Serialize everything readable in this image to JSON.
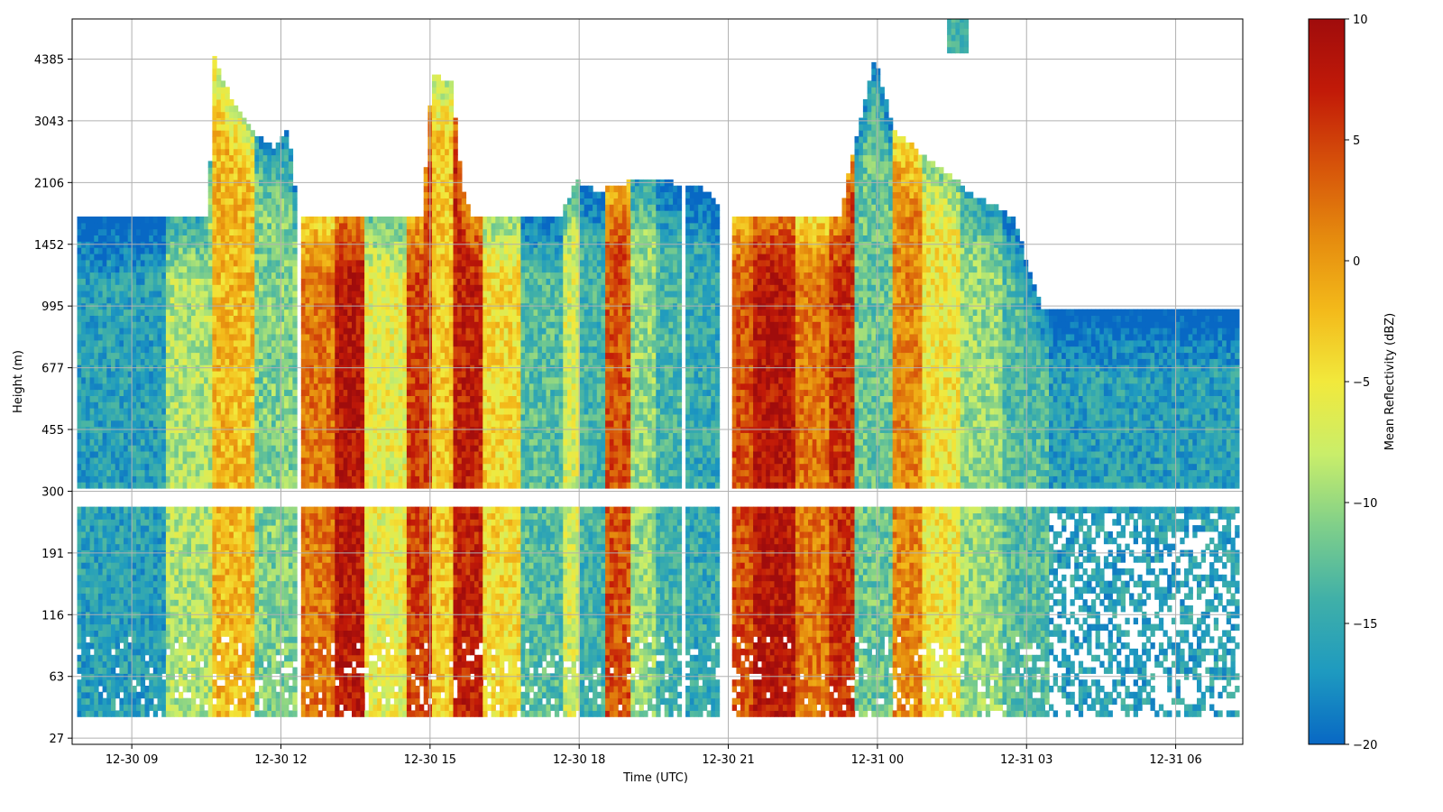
{
  "chart_data": {
    "type": "heatmap",
    "title": "",
    "xlabel": "Time (UTC)",
    "ylabel": "Height (m)",
    "x_ticks": [
      "12-30 09",
      "12-30 12",
      "12-30 15",
      "12-30 18",
      "12-30 21",
      "12-31 00",
      "12-31 03",
      "12-31 06"
    ],
    "x_tick_hours": [
      0,
      3,
      6,
      9,
      12,
      15,
      18,
      21
    ],
    "x_range_hours": [
      -1.2,
      22.35
    ],
    "y_ticks": [
      "27",
      "63",
      "116",
      "191",
      "300",
      "455",
      "677",
      "995",
      "1452",
      "2106",
      "3043",
      "4385"
    ],
    "grid": true,
    "colorbar": {
      "label": "Mean Reflectivity (dBZ)",
      "range": [
        -20,
        10
      ],
      "ticks": [
        "10",
        "5",
        "0",
        "−5",
        "−10",
        "−15",
        "−20"
      ],
      "tick_values": [
        10,
        5,
        0,
        -5,
        -10,
        -15,
        -20
      ],
      "colormap": [
        "#0868c4",
        "#1e9ac0",
        "#40b0a8",
        "#7fcf8a",
        "#c9ee6a",
        "#f2e93c",
        "#f3b91a",
        "#e58a0e",
        "#d6520a",
        "#c21a08",
        "#a00c0c"
      ]
    },
    "cloud_top_levels": [
      {
        "time": -1.1,
        "top": 8.4
      },
      {
        "time": 1.5,
        "top": 8.4
      },
      {
        "time": 1.6,
        "top": 11.0
      },
      {
        "time": 2.0,
        "top": 10.2
      },
      {
        "time": 2.5,
        "top": 9.7
      },
      {
        "time": 2.8,
        "top": 9.5
      },
      {
        "time": 3.1,
        "top": 9.8
      },
      {
        "time": 3.3,
        "top": 8.4
      },
      {
        "time": 5.8,
        "top": 8.4
      },
      {
        "time": 6.0,
        "top": 10.7
      },
      {
        "time": 6.4,
        "top": 10.6
      },
      {
        "time": 6.6,
        "top": 8.9
      },
      {
        "time": 6.8,
        "top": 8.4
      },
      {
        "time": 8.6,
        "top": 8.4
      },
      {
        "time": 8.9,
        "top": 9.0
      },
      {
        "time": 9.3,
        "top": 8.8
      },
      {
        "time": 9.7,
        "top": 8.9
      },
      {
        "time": 10.2,
        "top": 9.0
      },
      {
        "time": 11.4,
        "top": 8.9
      },
      {
        "time": 12.0,
        "top": 8.4
      },
      {
        "time": 14.2,
        "top": 8.4
      },
      {
        "time": 14.5,
        "top": 9.6
      },
      {
        "time": 14.9,
        "top": 11.0
      },
      {
        "time": 15.3,
        "top": 9.8
      },
      {
        "time": 16.0,
        "top": 9.3
      },
      {
        "time": 17.0,
        "top": 8.7
      },
      {
        "time": 17.7,
        "top": 8.4
      },
      {
        "time": 18.1,
        "top": 7.3
      },
      {
        "time": 18.3,
        "top": 6.9
      },
      {
        "time": 22.2,
        "top": 6.9
      }
    ],
    "high_cloud_patch": {
      "time_range": [
        16.4,
        16.8
      ],
      "top": 11.7,
      "bottom": 11.1
    },
    "bands": [
      {
        "time_range": [
          -1.1,
          0.6
        ],
        "reflectivity": -16
      },
      {
        "time_range": [
          0.6,
          1.6
        ],
        "reflectivity": -9
      },
      {
        "time_range": [
          1.6,
          2.4
        ],
        "reflectivity": -2
      },
      {
        "time_range": [
          2.4,
          3.3
        ],
        "reflectivity": -11
      },
      {
        "time_range": [
          3.4,
          4.0
        ],
        "reflectivity": 2
      },
      {
        "time_range": [
          4.0,
          4.6
        ],
        "reflectivity": 8
      },
      {
        "time_range": [
          4.6,
          5.5
        ],
        "reflectivity": -6
      },
      {
        "time_range": [
          5.5,
          6.0
        ],
        "reflectivity": 5
      },
      {
        "time_range": [
          6.0,
          6.4
        ],
        "reflectivity": -3
      },
      {
        "time_range": [
          6.4,
          7.0
        ],
        "reflectivity": 7
      },
      {
        "time_range": [
          7.0,
          7.8
        ],
        "reflectivity": -4
      },
      {
        "time_range": [
          7.8,
          8.6
        ],
        "reflectivity": -13
      },
      {
        "time_range": [
          8.6,
          9.0
        ],
        "reflectivity": -7
      },
      {
        "time_range": [
          9.0,
          9.5
        ],
        "reflectivity": -14
      },
      {
        "time_range": [
          9.5,
          10.0
        ],
        "reflectivity": 4
      },
      {
        "time_range": [
          10.0,
          10.5
        ],
        "reflectivity": -10
      },
      {
        "time_range": [
          10.5,
          11.0
        ],
        "reflectivity": -14
      },
      {
        "time_range": [
          11.1,
          11.8
        ],
        "reflectivity": -15
      },
      {
        "time_range": [
          12.0,
          12.5
        ],
        "reflectivity": 4
      },
      {
        "time_range": [
          12.5,
          13.3
        ],
        "reflectivity": 8
      },
      {
        "time_range": [
          13.3,
          14.0
        ],
        "reflectivity": 2
      },
      {
        "time_range": [
          14.0,
          14.5
        ],
        "reflectivity": 6
      },
      {
        "time_range": [
          14.5,
          15.3
        ],
        "reflectivity": -12
      },
      {
        "time_range": [
          15.3,
          15.9
        ],
        "reflectivity": 1
      },
      {
        "time_range": [
          15.9,
          16.6
        ],
        "reflectivity": -5
      },
      {
        "time_range": [
          16.6,
          17.5
        ],
        "reflectivity": -10
      },
      {
        "time_range": [
          17.5,
          18.4
        ],
        "reflectivity": -13
      },
      {
        "time_range": [
          18.4,
          22.2
        ],
        "reflectivity": -16
      }
    ]
  }
}
